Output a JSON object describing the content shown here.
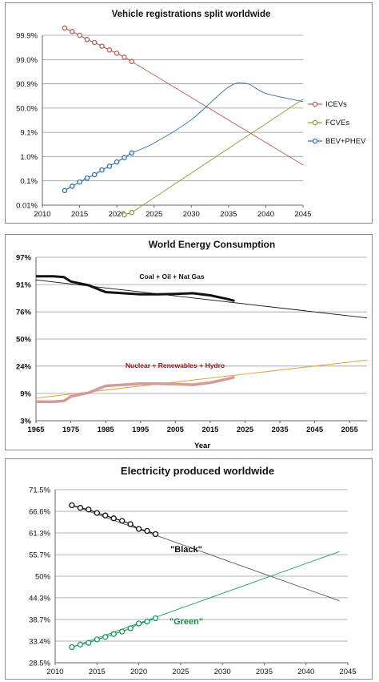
{
  "chart_data": [
    {
      "type": "line",
      "title": "Vehicle registrations split worldwide",
      "xlabel": "",
      "ylabel": "",
      "y_scale": "logit",
      "xlim": [
        2010,
        2045
      ],
      "x_ticks": [
        "2010",
        "2015",
        "2020",
        "2025",
        "2030",
        "2035",
        "2040",
        "2045"
      ],
      "y_ticks": [
        "0.01%",
        "0.1%",
        "1.0%",
        "9.1%",
        "50.0%",
        "90.9%",
        "99.0%",
        "99.9%"
      ],
      "grid": true,
      "legend": "right",
      "series": [
        {
          "name": "ICEVs",
          "color": "#b5615a",
          "x": [
            2013,
            2014,
            2015,
            2016,
            2017,
            2018,
            2019,
            2020,
            2021,
            2022
          ],
          "y_percent": [
            99.95,
            99.93,
            99.9,
            99.85,
            99.8,
            99.72,
            99.6,
            99.45,
            99.2,
            98.8
          ],
          "trend_x": [
            2022,
            2045
          ],
          "trend_y_percent": [
            98.8,
            0.45
          ]
        },
        {
          "name": "FCVEs",
          "color": "#8da03a",
          "x": [
            2021,
            2022
          ],
          "y_percent": [
            0.004,
            0.005
          ],
          "trend_x": [
            2022,
            2045
          ],
          "trend_y_percent": [
            0.005,
            70
          ]
        },
        {
          "name": "BEV+PHEV",
          "color": "#2f6fb0",
          "x": [
            2013,
            2014,
            2015,
            2016,
            2017,
            2018,
            2019,
            2020,
            2021,
            2022
          ],
          "y_percent": [
            0.04,
            0.06,
            0.09,
            0.13,
            0.18,
            0.28,
            0.4,
            0.6,
            0.9,
            1.4
          ],
          "trend_x": [
            2022,
            2025,
            2030,
            2035,
            2037.5,
            2040,
            2045
          ],
          "trend_y_percent": [
            1.4,
            3.5,
            25,
            88,
            91,
            80,
            65
          ]
        }
      ]
    },
    {
      "type": "line",
      "title": "World Energy Consumption",
      "xlabel": "Year",
      "ylabel": "",
      "y_scale": "logit",
      "xlim": [
        1965,
        2060
      ],
      "x_ticks": [
        "1965",
        "1975",
        "1985",
        "1995",
        "2005",
        "2015",
        "2025",
        "2035",
        "2045",
        "2055"
      ],
      "y_ticks": [
        "3%",
        "9%",
        "24%",
        "50%",
        "76%",
        "91%",
        "97%"
      ],
      "grid": true,
      "annotations": [
        {
          "text": "Coal + Oil + Nat Gas",
          "color": "#111111"
        },
        {
          "text": "Nuclear + Renewables + Hydro",
          "color": "#8b1a1a"
        }
      ],
      "series": [
        {
          "name": "Coal + Oil + Nat Gas",
          "color": "#111111",
          "x": [
            1965,
            1970,
            1973,
            1975,
            1980,
            1985,
            1990,
            1995,
            2000,
            2005,
            2010,
            2015,
            2020,
            2022
          ],
          "y_percent": [
            93.5,
            93.5,
            93.3,
            92,
            90.8,
            88,
            87.5,
            87,
            87,
            87.2,
            87.5,
            86.5,
            84.5,
            83.5
          ],
          "trend_x": [
            1965,
            2060
          ],
          "trend_y_percent": [
            92.5,
            71
          ]
        },
        {
          "name": "Nuclear + Renewables + Hydro",
          "color": "#d59a9a",
          "x": [
            1965,
            1970,
            1973,
            1975,
            1980,
            1985,
            1990,
            1995,
            2000,
            2005,
            2010,
            2015,
            2020,
            2022
          ],
          "y_percent": [
            6.5,
            6.5,
            6.7,
            8,
            9.2,
            12,
            12.5,
            13,
            13,
            12.8,
            12.5,
            13.5,
            15.5,
            16.5
          ],
          "trend_x": [
            1965,
            2060
          ],
          "trend_y_percent": [
            7.5,
            29
          ]
        }
      ]
    },
    {
      "type": "line",
      "title": "Electricity produced worldwide",
      "xlabel": "",
      "ylabel": "",
      "y_scale": "logit",
      "xlim": [
        2010,
        2045
      ],
      "x_ticks": [
        "2010",
        "2015",
        "2020",
        "2025",
        "2030",
        "2035",
        "2040",
        "2045"
      ],
      "y_ticks": [
        "28.5%",
        "33.4%",
        "38.7%",
        "44.3%",
        "50%",
        "55.7%",
        "61.3%",
        "66.6%",
        "71.5%"
      ],
      "grid": true,
      "annotations": [
        {
          "text": "\"Black\"",
          "color": "#111111"
        },
        {
          "text": "\"Green\"",
          "color": "#1a8a4a"
        }
      ],
      "series": [
        {
          "name": "\"Black\"",
          "color": "#111111",
          "x": [
            2012,
            2013,
            2014,
            2015,
            2016,
            2017,
            2018,
            2019,
            2020,
            2021,
            2022
          ],
          "y_percent": [
            68.0,
            67.4,
            67.0,
            66.2,
            65.6,
            64.9,
            64.3,
            63.5,
            62.3,
            61.8,
            61.0
          ],
          "trend_x": [
            2012,
            2044
          ],
          "trend_y_percent": [
            68.0,
            43.5
          ]
        },
        {
          "name": "\"Green\"",
          "color": "#1a9a5a",
          "x": [
            2012,
            2013,
            2014,
            2015,
            2016,
            2017,
            2018,
            2019,
            2020,
            2021,
            2022
          ],
          "y_percent": [
            32.0,
            32.6,
            33.0,
            33.8,
            34.4,
            35.1,
            35.7,
            36.5,
            37.7,
            38.2,
            39.0
          ],
          "trend_x": [
            2012,
            2044
          ],
          "trend_y_percent": [
            32.0,
            56.5
          ]
        }
      ]
    }
  ]
}
